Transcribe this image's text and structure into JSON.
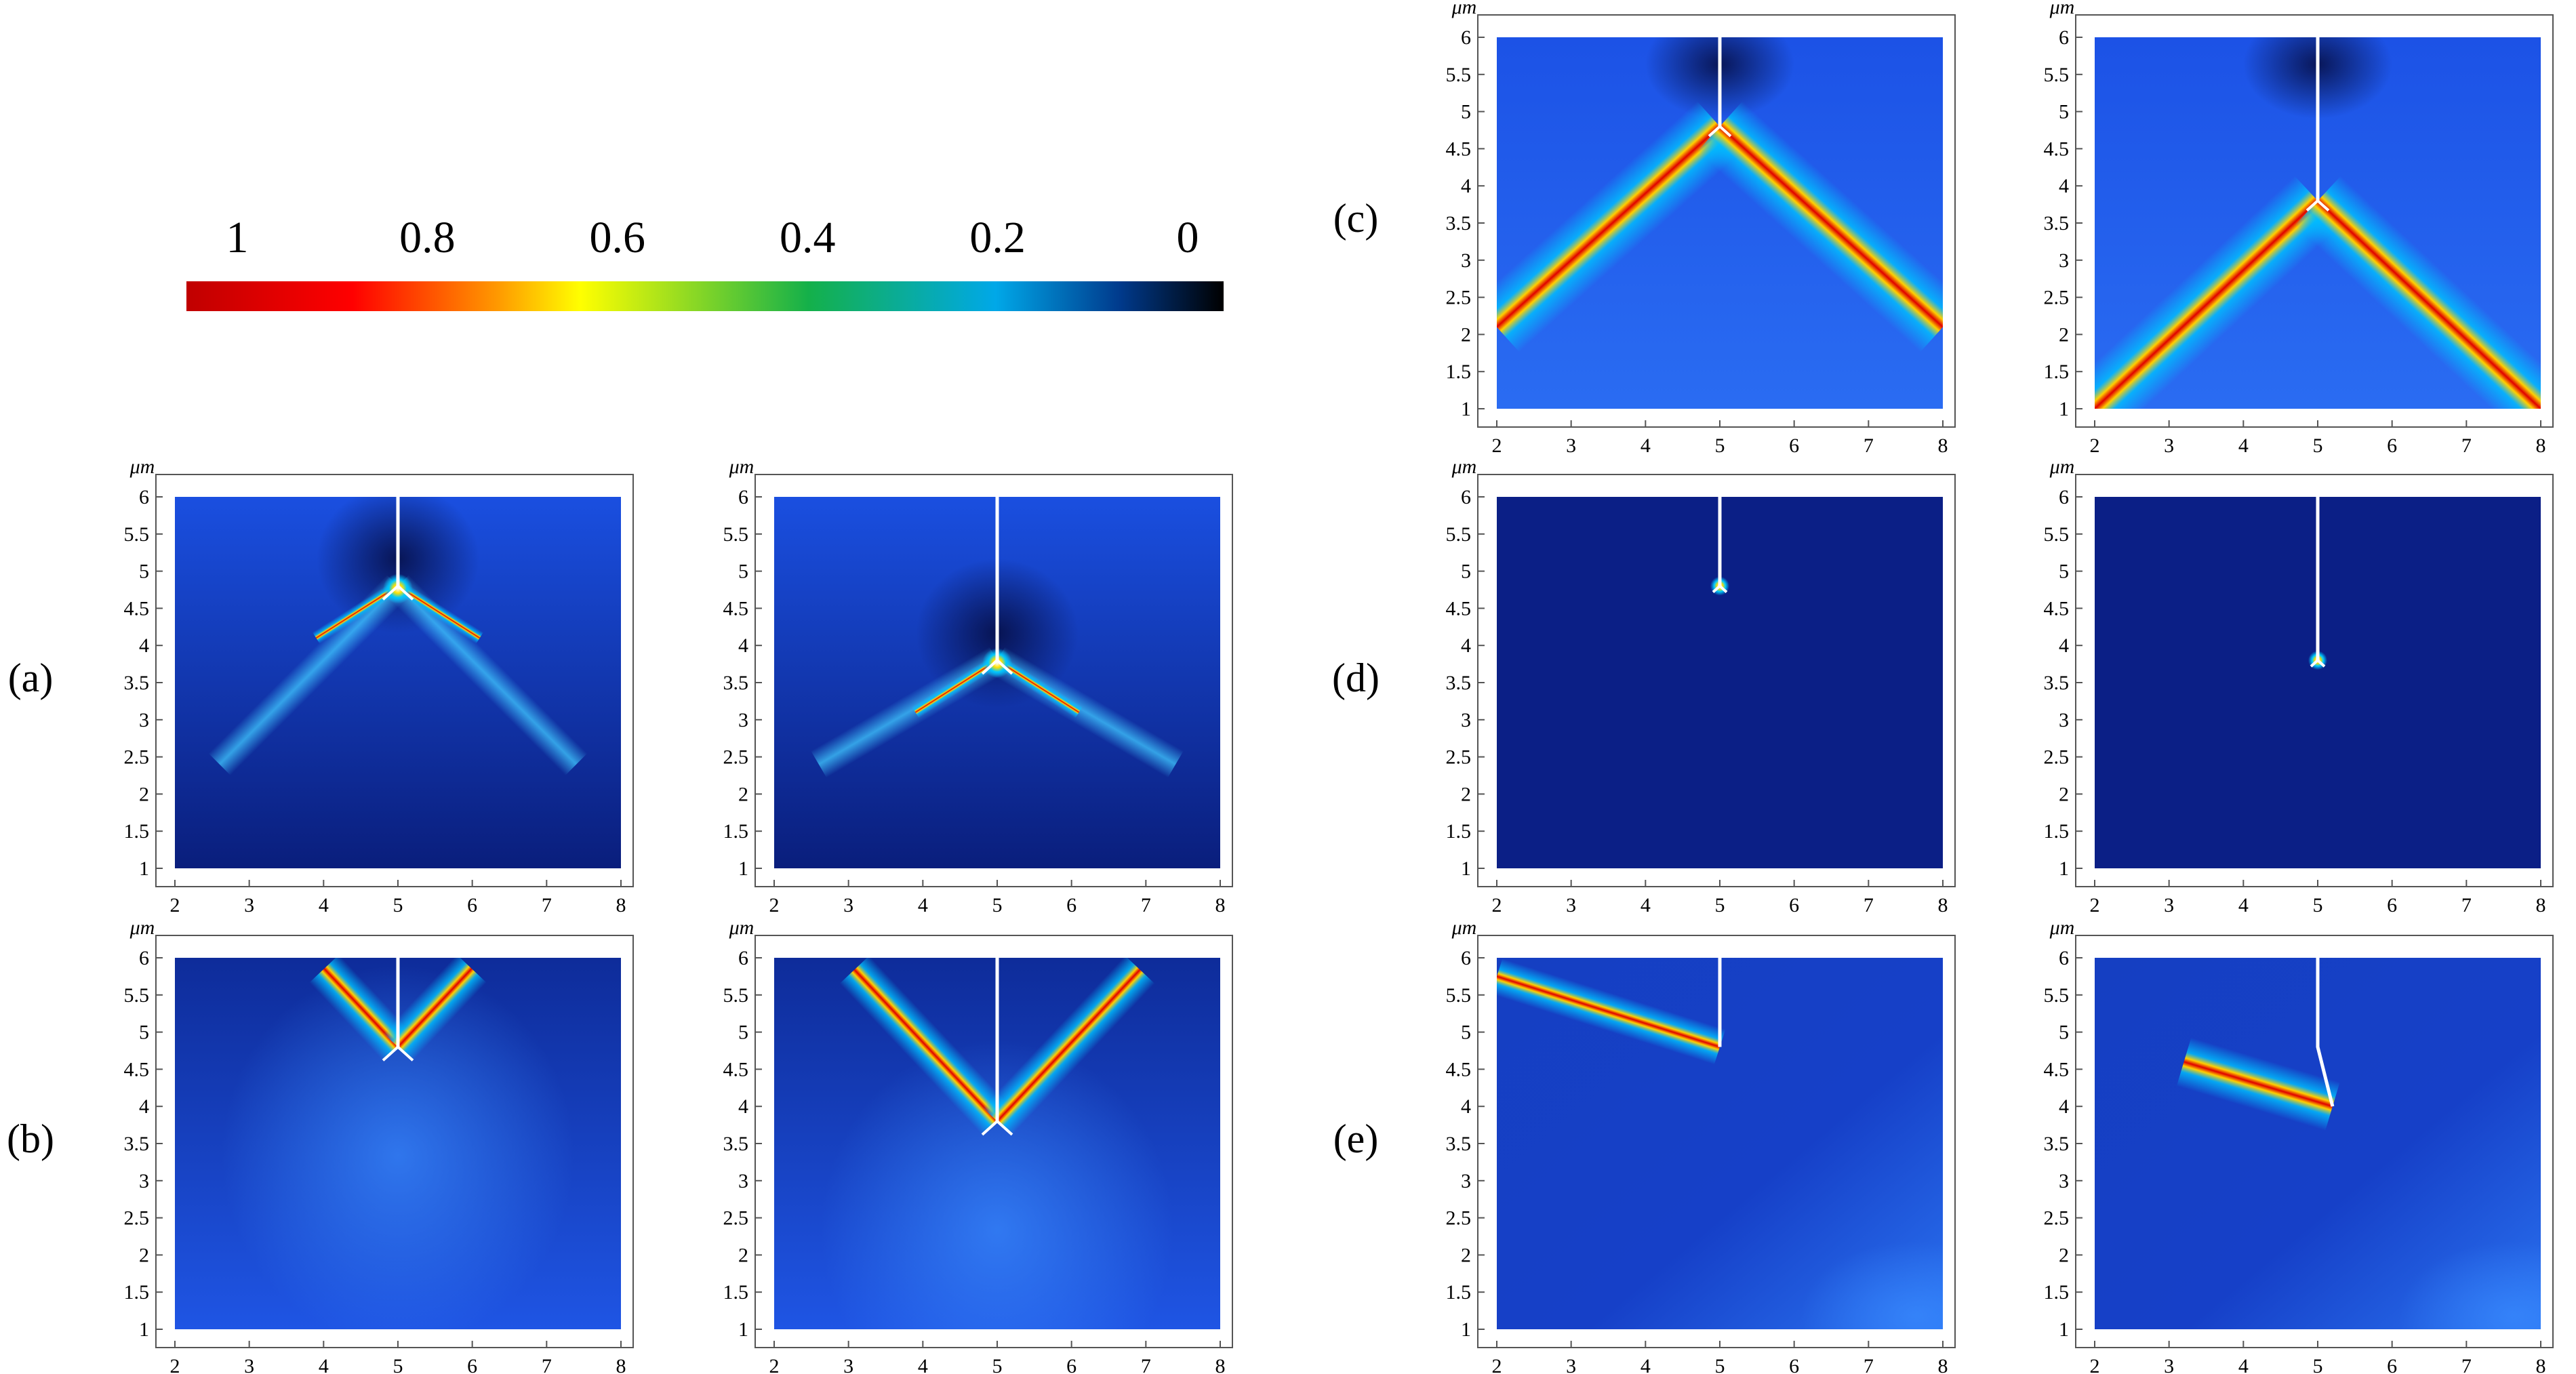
{
  "colorbar": {
    "tick_labels": [
      "1",
      "0.8",
      "0.6",
      "0.4",
      "0.2",
      "0"
    ],
    "tick_values": [
      1,
      0.8,
      0.6,
      0.4,
      0.2,
      0
    ],
    "colors": [
      "#c00000",
      "#ff0000",
      "#ff9900",
      "#ffff00",
      "#14b04a",
      "#00a8e8",
      "#003a8c",
      "#000000"
    ]
  },
  "chart_data": [
    {
      "type": "heatmap",
      "row_label": "(a)",
      "column": "left",
      "unit_label": "μm",
      "x_ticks": [
        "2",
        "3",
        "4",
        "5",
        "6",
        "7",
        "8"
      ],
      "y_ticks": [
        "1",
        "1.5",
        "2",
        "2.5",
        "3",
        "3.5",
        "4",
        "4.5",
        "5",
        "5.5",
        "6"
      ],
      "xlim": [
        2,
        8
      ],
      "ylim": [
        1,
        6
      ],
      "crack_tip": [
        5,
        4.8
      ],
      "field": "tip"
    },
    {
      "type": "heatmap",
      "row_label": "(a)",
      "column": "right",
      "unit_label": "μm",
      "x_ticks": [
        "2",
        "3",
        "4",
        "5",
        "6",
        "7",
        "8"
      ],
      "y_ticks": [
        "1",
        "1.5",
        "2",
        "2.5",
        "3",
        "3.5",
        "4",
        "4.5",
        "5",
        "5.5",
        "6"
      ],
      "xlim": [
        2,
        8
      ],
      "ylim": [
        1,
        6
      ],
      "crack_tip": [
        5,
        3.8
      ],
      "field": "tip"
    },
    {
      "type": "heatmap",
      "row_label": "(b)",
      "column": "left",
      "unit_label": "μm",
      "x_ticks": [
        "2",
        "3",
        "4",
        "5",
        "6",
        "7",
        "8"
      ],
      "y_ticks": [
        "1",
        "1.5",
        "2",
        "2.5",
        "3",
        "3.5",
        "4",
        "4.5",
        "5",
        "5.5",
        "6"
      ],
      "xlim": [
        2,
        8
      ],
      "ylim": [
        1,
        6
      ],
      "crack_tip": [
        5,
        4.8
      ],
      "field": "upward"
    },
    {
      "type": "heatmap",
      "row_label": "(b)",
      "column": "right",
      "unit_label": "μm",
      "x_ticks": [
        "2",
        "3",
        "4",
        "5",
        "6",
        "7",
        "8"
      ],
      "y_ticks": [
        "1",
        "1.5",
        "2",
        "2.5",
        "3",
        "3.5",
        "4",
        "4.5",
        "5",
        "5.5",
        "6"
      ],
      "xlim": [
        2,
        8
      ],
      "ylim": [
        1,
        6
      ],
      "crack_tip": [
        5,
        3.8
      ],
      "field": "upward"
    },
    {
      "type": "heatmap",
      "row_label": "(c)",
      "column": "left",
      "unit_label": "μm",
      "x_ticks": [
        "2",
        "3",
        "4",
        "5",
        "6",
        "7",
        "8"
      ],
      "y_ticks": [
        "1",
        "1.5",
        "2",
        "2.5",
        "3",
        "3.5",
        "4",
        "4.5",
        "5",
        "5.5",
        "6"
      ],
      "xlim": [
        2,
        8
      ],
      "ylim": [
        1,
        6
      ],
      "crack_tip": [
        5,
        4.8
      ],
      "field": "downward"
    },
    {
      "type": "heatmap",
      "row_label": "(c)",
      "column": "right",
      "unit_label": "μm",
      "x_ticks": [
        "2",
        "3",
        "4",
        "5",
        "6",
        "7",
        "8"
      ],
      "y_ticks": [
        "1",
        "1.5",
        "2",
        "2.5",
        "3",
        "3.5",
        "4",
        "4.5",
        "5",
        "5.5",
        "6"
      ],
      "xlim": [
        2,
        8
      ],
      "ylim": [
        1,
        6
      ],
      "crack_tip": [
        5,
        3.8
      ],
      "field": "downward"
    },
    {
      "type": "heatmap",
      "row_label": "(d)",
      "column": "left",
      "unit_label": "μm",
      "x_ticks": [
        "2",
        "3",
        "4",
        "5",
        "6",
        "7",
        "8"
      ],
      "y_ticks": [
        "1",
        "1.5",
        "2",
        "2.5",
        "3",
        "3.5",
        "4",
        "4.5",
        "5",
        "5.5",
        "6"
      ],
      "xlim": [
        2,
        8
      ],
      "ylim": [
        1,
        6
      ],
      "crack_tip": [
        5,
        4.8
      ],
      "field": "point"
    },
    {
      "type": "heatmap",
      "row_label": "(d)",
      "column": "right",
      "unit_label": "μm",
      "x_ticks": [
        "2",
        "3",
        "4",
        "5",
        "6",
        "7",
        "8"
      ],
      "y_ticks": [
        "1",
        "1.5",
        "2",
        "2.5",
        "3",
        "3.5",
        "4",
        "4.5",
        "5",
        "5.5",
        "6"
      ],
      "xlim": [
        2,
        8
      ],
      "ylim": [
        1,
        6
      ],
      "crack_tip": [
        5,
        3.8
      ],
      "field": "point"
    },
    {
      "type": "heatmap",
      "row_label": "(e)",
      "column": "left",
      "unit_label": "μm",
      "x_ticks": [
        "2",
        "3",
        "4",
        "5",
        "6",
        "7",
        "8"
      ],
      "y_ticks": [
        "1",
        "1.5",
        "2",
        "2.5",
        "3",
        "3.5",
        "4",
        "4.5",
        "5",
        "5.5",
        "6"
      ],
      "xlim": [
        2,
        8
      ],
      "ylim": [
        1,
        6
      ],
      "crack_tip": [
        5,
        4.8
      ],
      "field": "oblique"
    },
    {
      "type": "heatmap",
      "row_label": "(e)",
      "column": "right",
      "unit_label": "μm",
      "x_ticks": [
        "2",
        "3",
        "4",
        "5",
        "6",
        "7",
        "8"
      ],
      "y_ticks": [
        "1",
        "1.5",
        "2",
        "2.5",
        "3",
        "3.5",
        "4",
        "4.5",
        "5",
        "5.5",
        "6"
      ],
      "xlim": [
        2,
        8
      ],
      "ylim": [
        1,
        6
      ],
      "crack_tip": [
        5.2,
        4.0
      ],
      "crack_kink": [
        5,
        4.8
      ],
      "field": "oblique"
    }
  ]
}
